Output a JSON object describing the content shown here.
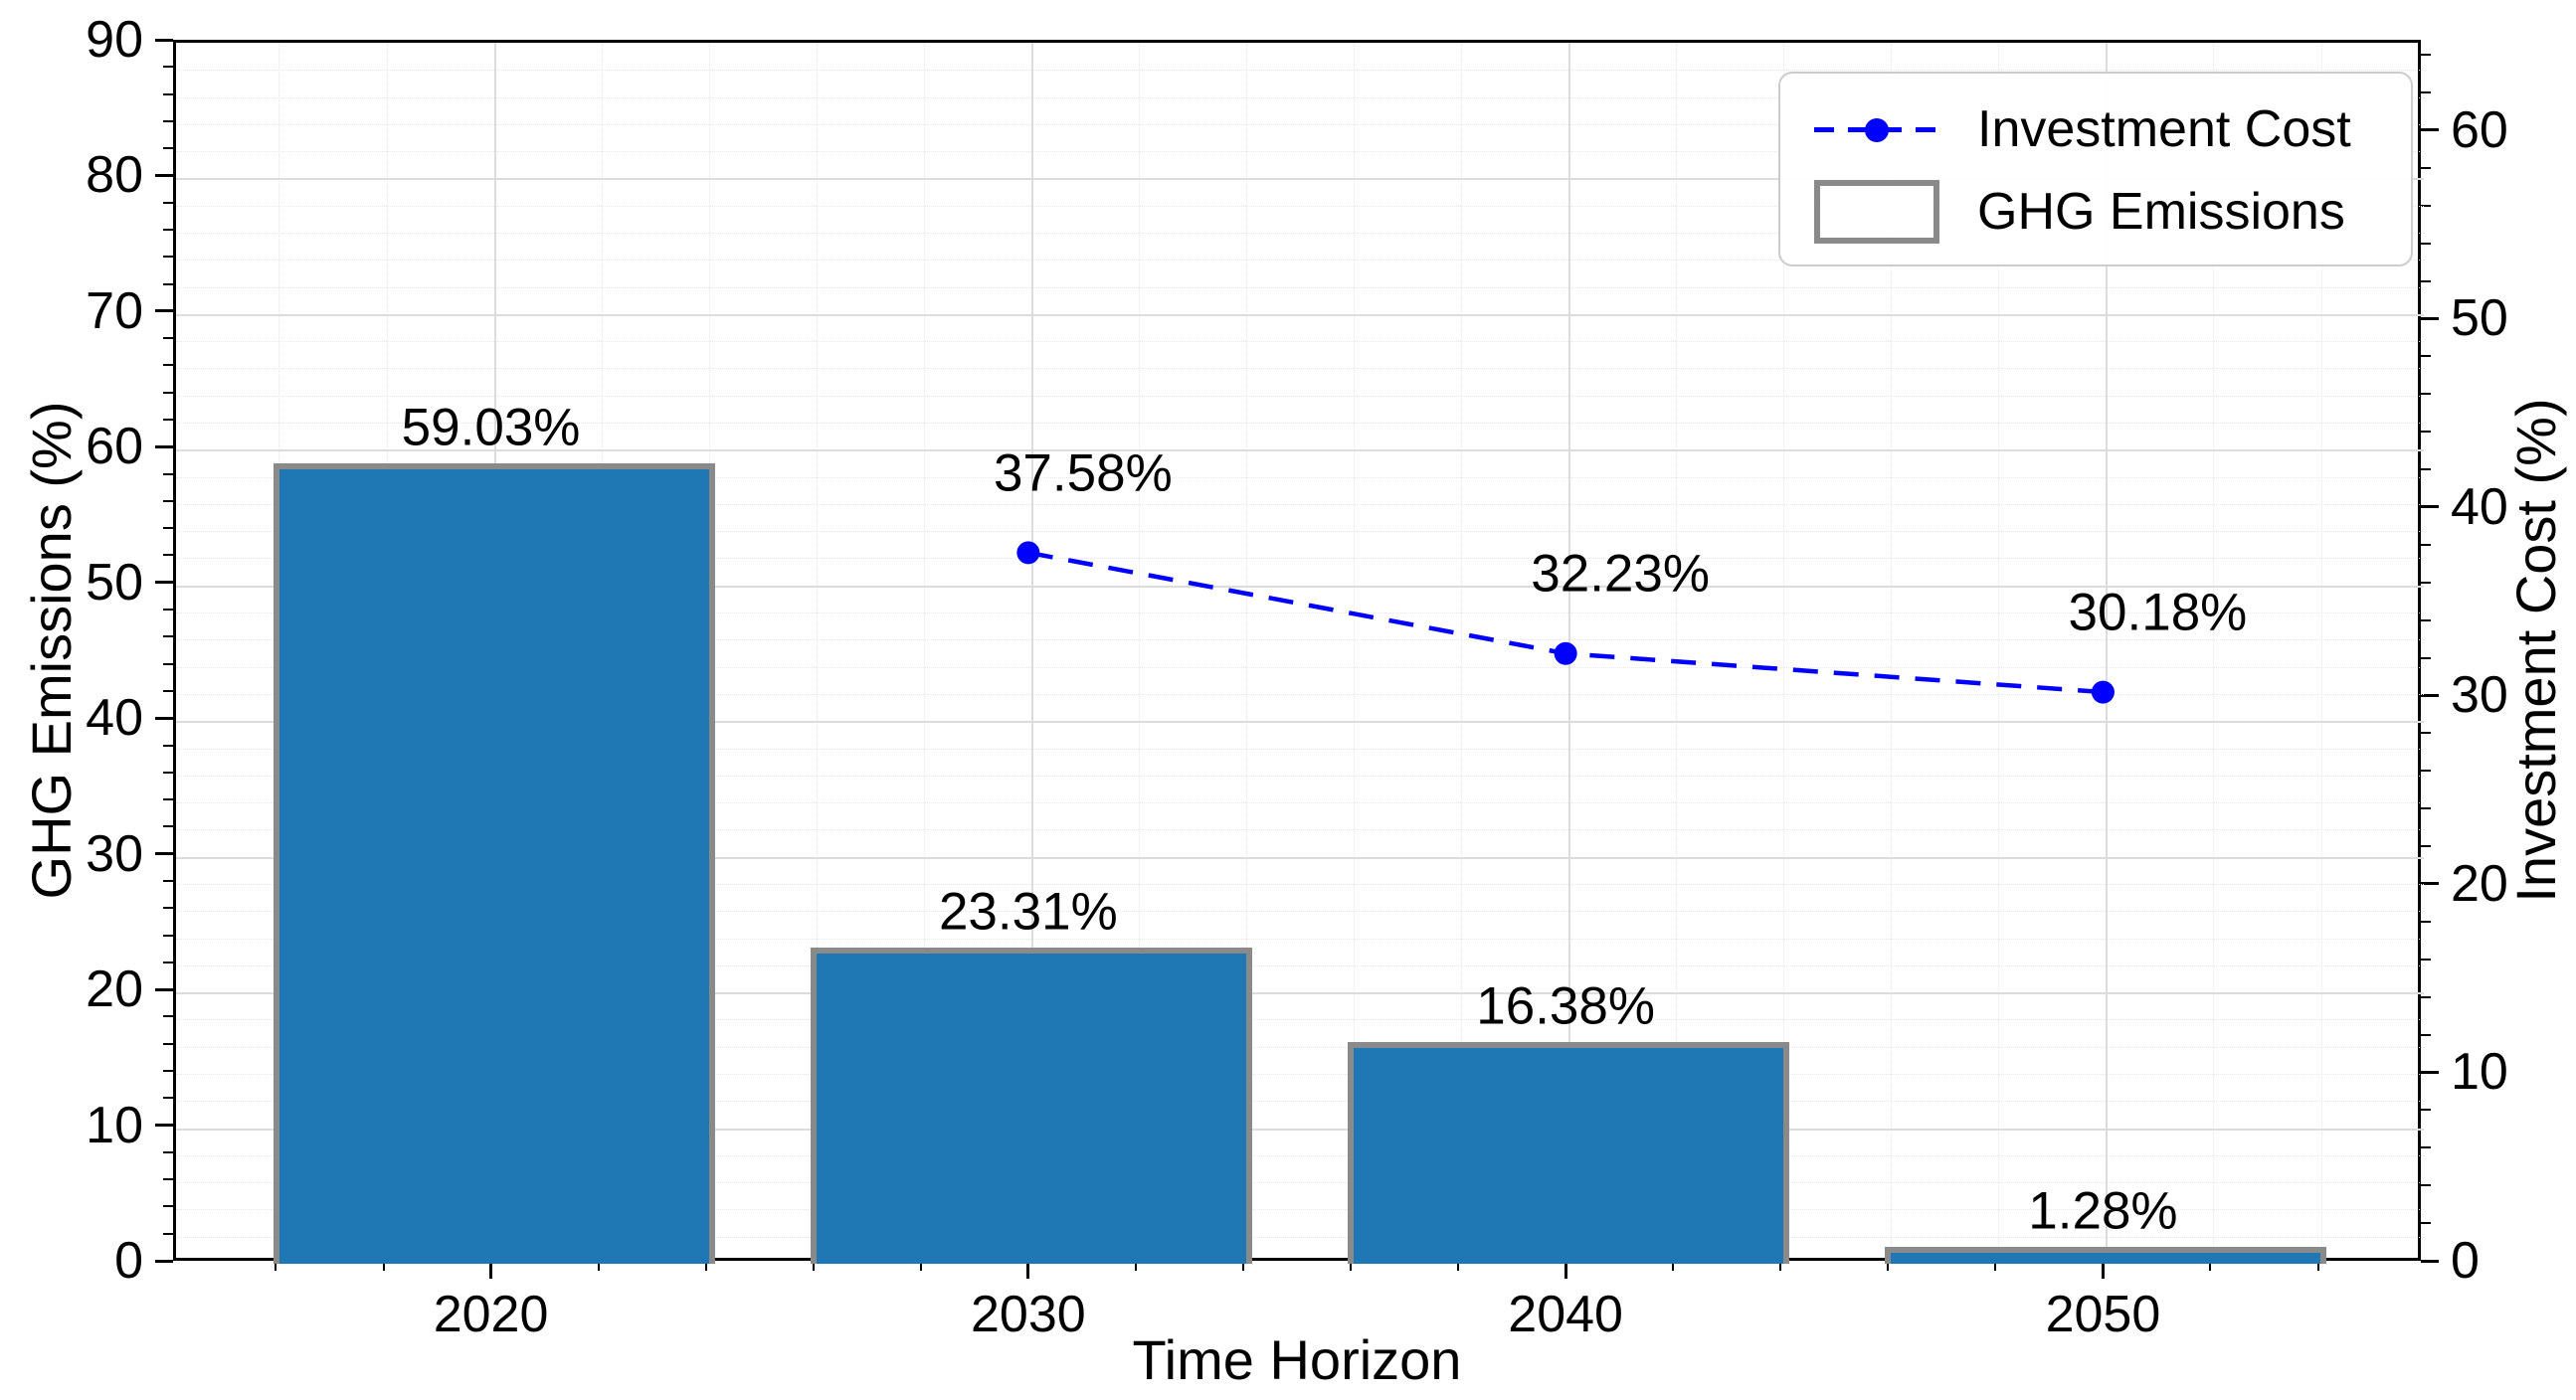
{
  "chart_data": {
    "type": "bar+line (dual axis)",
    "categories": [
      "2020",
      "2030",
      "2040",
      "2050"
    ],
    "series": [
      {
        "name": "GHG Emissions",
        "type": "bar",
        "axis": "left",
        "x": [
          0,
          1,
          2,
          3
        ],
        "values": [
          59.03,
          23.31,
          16.38,
          1.28
        ],
        "labels": [
          "59.03%",
          "23.31%",
          "16.38%",
          "1.28%"
        ],
        "color": "#1f77b4",
        "edge_color": "#8a8a8a"
      },
      {
        "name": "Investment Cost",
        "type": "line",
        "axis": "right",
        "x": [
          1,
          2,
          3
        ],
        "values": [
          37.58,
          32.23,
          30.18
        ],
        "labels": [
          "37.58%",
          "32.23%",
          "30.18%"
        ],
        "color": "#0000ff",
        "line_style": "dashed",
        "marker": "circle"
      }
    ],
    "xlabel": "Time Horizon",
    "ylabel_left": "GHG Emissions (%)",
    "ylabel_right": "Investment Cost (%)",
    "ylim_left": [
      0,
      90
    ],
    "yticks_left": [
      0,
      10,
      20,
      30,
      40,
      50,
      60,
      70,
      80,
      90
    ],
    "ylim_right": [
      0,
      64.8
    ],
    "yticks_right": [
      0,
      10,
      20,
      30,
      40,
      50,
      60
    ],
    "grid": "major solid + minor dotted, both axes",
    "legend_position": "upper right",
    "legend": [
      {
        "label": "Investment Cost"
      },
      {
        "label": "GHG Emissions"
      }
    ]
  }
}
